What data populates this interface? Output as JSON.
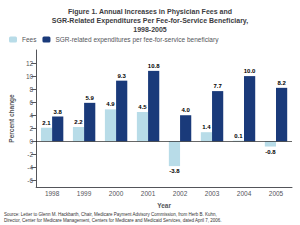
{
  "chart_data": {
    "type": "bar",
    "title": "Figure 1. Annual Increases in Physician Fees and\nSGR-Related Expenditures Per Fee-for-Service Beneficiary,\n1998-2005",
    "xlabel": "Year",
    "ylabel": "Percent change",
    "categories": [
      1998,
      1999,
      2000,
      2001,
      2002,
      2003,
      2004,
      2005
    ],
    "series": [
      {
        "name": "Fees",
        "color": "#b8dce8",
        "values": [
          2.1,
          2.2,
          4.9,
          4.5,
          -3.8,
          1.4,
          0.1,
          -0.8
        ]
      },
      {
        "name": "SGR-related expenditures per fee-for-service beneficiary",
        "color": "#1a3a7a",
        "values": [
          3.8,
          5.9,
          9.3,
          10.8,
          4.0,
          7.7,
          10.0,
          8.2
        ],
        "value_labels": [
          "3.8",
          "5.9",
          "9.3",
          "10.8",
          "4.0",
          "7.7",
          "10.0",
          "8.2"
        ]
      }
    ],
    "ylim": [
      -7,
      14
    ],
    "yticks": [
      -6,
      -4,
      -2,
      0,
      2,
      4,
      6,
      8,
      10,
      12
    ],
    "grid": false,
    "legend": "upper left",
    "data_labels": true,
    "annotations": [
      "Source: Letter to Glenn M. Hackbarth, Chair, Medicare Payment Advisory Commission, from Herb B. Kuhn,\nDirector, Center for Medicare Management, Centers for Medicare and Medicaid Services, dated April 7, 2006."
    ]
  }
}
